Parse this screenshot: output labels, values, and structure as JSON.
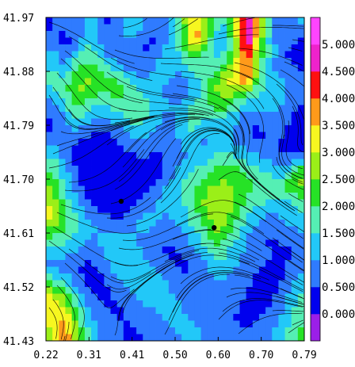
{
  "chart_data": {
    "type": "heatmap",
    "title": "",
    "xlabel": "",
    "ylabel": "",
    "xlim": [
      0.22,
      0.79
    ],
    "ylim": [
      41.43,
      41.97
    ],
    "x_ticks": [
      "0.22",
      "0.31",
      "0.41",
      "0.50",
      "0.60",
      "0.70",
      "0.79"
    ],
    "y_ticks": [
      "41.97",
      "41.88",
      "41.79",
      "41.70",
      "41.61",
      "41.52",
      "41.43"
    ],
    "overlay": "streamlines",
    "markers": [
      {
        "x": 0.386,
        "y": 41.663
      },
      {
        "x": 0.591,
        "y": 41.619
      }
    ],
    "colorbar": {
      "levels": [
        "0.000",
        "0.500",
        "1.000",
        "1.500",
        "2.000",
        "2.500",
        "3.000",
        "3.500",
        "4.000",
        "4.500",
        "5.000"
      ],
      "colors": [
        "#9b1fe8",
        "#0000ee",
        "#2f7bff",
        "#22c8f8",
        "#55efb4",
        "#26e226",
        "#9bef18",
        "#f7f720",
        "#ff9a1a",
        "#ff1010",
        "#ee22cc",
        "#ff44ff"
      ],
      "range": [
        -0.5,
        5.5
      ]
    },
    "grid": {
      "cols": 20,
      "rows": 24,
      "values": [
        [
          0.4,
          0.9,
          0.6,
          1.2,
          0.4,
          0.7,
          1.5,
          1.1,
          0.5,
          0.9,
          2.2,
          3.4,
          2.8,
          1.2,
          2.6,
          4.9,
          3.6,
          1.1,
          0.6,
          1.1
        ],
        [
          0.6,
          0.3,
          0.8,
          1.4,
          0.7,
          0.5,
          1.2,
          0.6,
          0.4,
          1.1,
          1.9,
          4.2,
          2.4,
          1.0,
          2.3,
          5.2,
          3.1,
          0.9,
          0.8,
          0.5
        ],
        [
          1.1,
          0.5,
          1.3,
          1.8,
          0.9,
          0.6,
          0.9,
          0.4,
          0.6,
          1.3,
          1.6,
          3.0,
          1.7,
          1.3,
          2.1,
          4.6,
          2.5,
          1.3,
          0.5,
          0.3
        ],
        [
          1.4,
          1.0,
          1.9,
          2.1,
          1.6,
          1.1,
          0.7,
          0.6,
          1.0,
          1.5,
          1.2,
          1.8,
          1.4,
          1.7,
          2.9,
          4.3,
          2.2,
          1.0,
          0.7,
          0.4
        ],
        [
          1.7,
          1.6,
          2.4,
          2.6,
          2.2,
          1.9,
          1.3,
          1.0,
          1.2,
          1.0,
          0.8,
          1.3,
          1.9,
          2.5,
          3.3,
          4.1,
          2.0,
          1.2,
          0.9,
          0.6
        ],
        [
          1.3,
          1.9,
          2.6,
          2.3,
          2.0,
          2.2,
          1.8,
          1.5,
          1.1,
          0.9,
          0.7,
          1.1,
          2.2,
          2.7,
          2.8,
          2.4,
          1.6,
          1.5,
          1.1,
          0.8
        ],
        [
          0.8,
          1.5,
          2.2,
          1.7,
          1.3,
          1.8,
          2.1,
          1.9,
          1.4,
          1.0,
          1.1,
          1.6,
          2.0,
          2.3,
          1.8,
          1.2,
          1.1,
          1.3,
          1.0,
          0.5
        ],
        [
          0.5,
          1.0,
          1.6,
          1.2,
          0.9,
          1.2,
          1.6,
          1.7,
          1.2,
          0.8,
          1.4,
          1.9,
          1.5,
          1.6,
          1.2,
          0.7,
          0.6,
          0.9,
          0.6,
          0.3
        ],
        [
          0.4,
          0.7,
          0.9,
          0.6,
          0.5,
          0.7,
          1.1,
          1.3,
          0.8,
          0.6,
          1.2,
          1.5,
          1.0,
          1.2,
          0.9,
          0.5,
          0.4,
          0.6,
          0.5,
          0.4
        ],
        [
          1.1,
          0.6,
          0.4,
          0.2,
          0.3,
          0.4,
          0.6,
          0.9,
          0.5,
          0.7,
          1.0,
          1.1,
          0.9,
          1.3,
          1.1,
          0.8,
          0.6,
          0.5,
          0.4,
          0.2
        ],
        [
          1.6,
          0.9,
          0.3,
          0.1,
          0.2,
          0.2,
          0.4,
          0.5,
          0.3,
          0.6,
          0.9,
          1.2,
          1.4,
          1.8,
          1.7,
          1.4,
          1.1,
          0.8,
          0.6,
          0.9
        ],
        [
          2.1,
          1.2,
          0.4,
          0.1,
          0.1,
          0.1,
          0.3,
          0.2,
          0.2,
          0.8,
          1.3,
          1.6,
          1.9,
          2.3,
          2.2,
          1.9,
          1.6,
          1.4,
          1.3,
          2.4
        ],
        [
          2.5,
          1.4,
          0.6,
          0.2,
          0.1,
          0.1,
          0.2,
          0.3,
          0.5,
          1.1,
          1.5,
          1.9,
          2.4,
          2.6,
          2.5,
          2.2,
          1.9,
          1.8,
          2.0,
          2.6
        ],
        [
          2.8,
          1.8,
          0.9,
          0.4,
          0.2,
          0.1,
          0.3,
          0.6,
          0.9,
          1.3,
          1.4,
          2.1,
          2.7,
          2.9,
          2.6,
          2.0,
          1.7,
          1.6,
          1.5,
          1.9
        ],
        [
          3.3,
          2.2,
          1.3,
          0.8,
          0.5,
          0.3,
          0.5,
          0.9,
          1.1,
          1.0,
          1.2,
          1.9,
          2.5,
          3.1,
          2.4,
          1.6,
          1.2,
          1.0,
          1.1,
          1.4
        ],
        [
          2.6,
          2.0,
          1.5,
          1.1,
          0.9,
          0.8,
          0.9,
          1.2,
          1.0,
          0.8,
          1.0,
          1.6,
          2.2,
          2.8,
          2.0,
          1.3,
          0.8,
          0.6,
          0.9,
          1.1
        ],
        [
          1.9,
          1.6,
          1.3,
          0.9,
          1.2,
          1.3,
          1.1,
          0.9,
          0.7,
          0.6,
          0.8,
          1.2,
          1.9,
          2.2,
          1.6,
          1.0,
          0.6,
          0.4,
          0.6,
          0.8
        ],
        [
          1.2,
          1.1,
          0.8,
          0.6,
          1.0,
          1.5,
          1.4,
          1.0,
          0.6,
          0.4,
          0.5,
          0.9,
          1.4,
          1.7,
          1.3,
          0.9,
          0.7,
          0.5,
          0.4,
          0.5
        ],
        [
          0.9,
          0.7,
          0.5,
          0.4,
          0.7,
          1.2,
          1.6,
          1.3,
          0.8,
          0.6,
          0.4,
          0.6,
          1.0,
          1.3,
          1.1,
          0.8,
          0.5,
          0.3,
          0.5,
          0.9
        ],
        [
          1.8,
          1.3,
          0.6,
          0.3,
          0.5,
          0.9,
          1.3,
          1.5,
          1.2,
          0.9,
          0.6,
          0.5,
          0.7,
          1.0,
          0.9,
          0.6,
          0.4,
          0.2,
          0.6,
          1.2
        ],
        [
          2.9,
          2.3,
          1.1,
          0.5,
          0.4,
          0.6,
          1.0,
          1.2,
          1.4,
          1.1,
          0.8,
          0.6,
          0.5,
          0.8,
          0.7,
          0.5,
          0.3,
          0.4,
          0.8,
          1.5
        ],
        [
          3.4,
          2.8,
          1.6,
          0.8,
          0.5,
          0.4,
          0.7,
          0.9,
          1.1,
          1.3,
          1.0,
          0.8,
          0.6,
          0.7,
          0.6,
          0.4,
          0.3,
          0.6,
          1.0,
          1.7
        ],
        [
          3.1,
          3.6,
          2.1,
          1.1,
          0.6,
          0.5,
          0.5,
          0.6,
          0.8,
          1.0,
          1.2,
          0.9,
          0.7,
          0.6,
          0.5,
          0.4,
          0.5,
          0.8,
          1.2,
          1.9
        ],
        [
          2.7,
          3.9,
          2.4,
          1.3,
          0.8,
          0.6,
          0.4,
          0.5,
          0.6,
          0.8,
          1.0,
          1.1,
          0.9,
          0.7,
          0.6,
          0.5,
          0.7,
          1.0,
          1.4,
          2.1
        ]
      ]
    }
  }
}
